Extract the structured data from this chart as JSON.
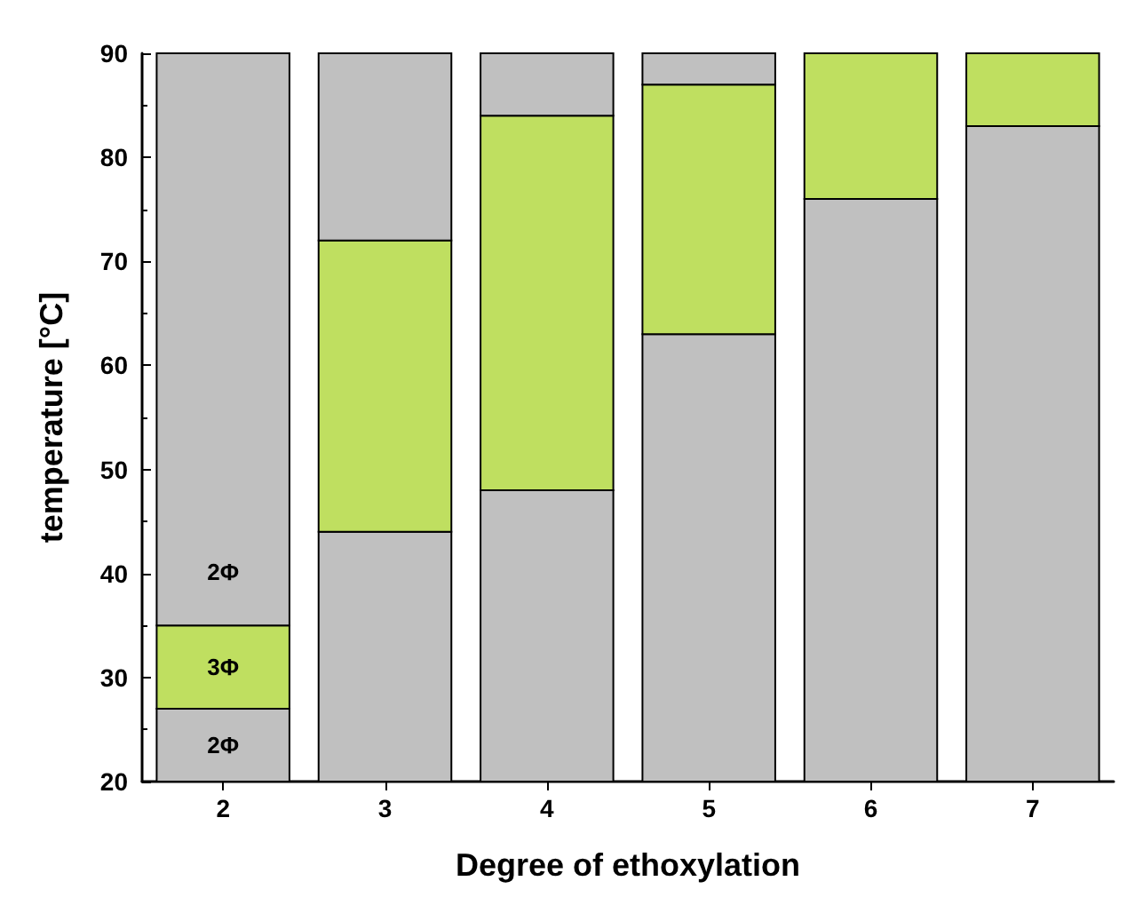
{
  "chart_data": {
    "type": "bar",
    "xlabel": "Degree of ethoxylation",
    "ylabel": "temperature [°C]",
    "categories": [
      "2",
      "3",
      "4",
      "5",
      "6",
      "7"
    ],
    "series": [
      {
        "color": "#c0c0c0",
        "base": [
          20,
          20,
          20,
          20,
          20,
          20
        ],
        "values": [
          7,
          24,
          28,
          43,
          56,
          63
        ]
      },
      {
        "color": "#bfdf60",
        "base": [
          27,
          44,
          48,
          63,
          76,
          83
        ],
        "values": [
          8,
          28,
          36,
          24,
          14,
          7
        ]
      },
      {
        "color": "#c0c0c0",
        "base": [
          35,
          72,
          84,
          87,
          null,
          null
        ],
        "values": [
          55,
          18,
          6,
          3,
          null,
          null
        ]
      }
    ],
    "ylim": [
      20,
      90
    ],
    "yticks": [
      20,
      30,
      40,
      50,
      60,
      70,
      80,
      90
    ],
    "grid": false,
    "annotations": [
      "2Φ",
      "3Φ",
      "2Φ"
    ]
  }
}
